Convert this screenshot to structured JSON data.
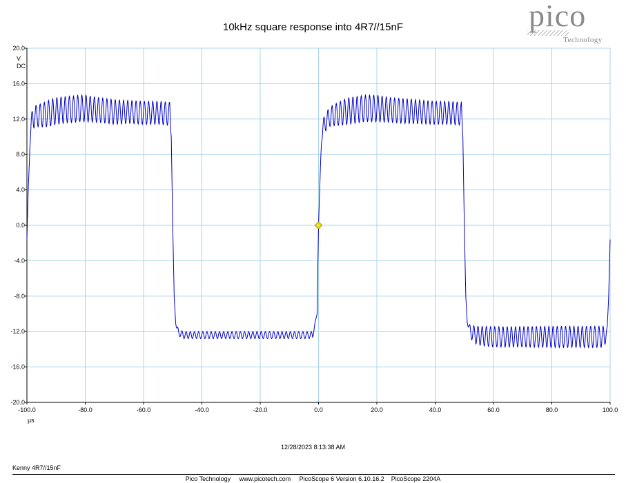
{
  "title": "10kHz square response into 4R7//15nF",
  "logo": {
    "word": "pico",
    "sub": "Technology"
  },
  "timestamp": "12/28/2023 8:13:38 AM",
  "note": "Kenny 4R7//15nF",
  "footer": "Pico Technology     www.picotech.com     PicoScope 6 Version 6.10.16.2    PicoScope 2204A",
  "colors": {
    "trace": "#0000cc",
    "grid": "#a8d4ea",
    "marker": "#f0e030",
    "marker_stroke": "#a09000"
  },
  "chart_data": {
    "type": "line",
    "title": "10kHz square response into 4R7//15nF",
    "xlabel": "µs",
    "ylabel_lines": [
      "V",
      "DC"
    ],
    "xlim": [
      -100,
      100
    ],
    "ylim": [
      -20,
      20
    ],
    "x_ticks": [
      -100,
      -80,
      -60,
      -40,
      -20,
      0,
      20,
      40,
      60,
      80,
      100
    ],
    "x_tick_labels": [
      "-100.0",
      "-80.0",
      "-60.0",
      "-40.0",
      "-20.0",
      "0.0",
      "20.0",
      "40.0",
      "60.0",
      "80.0",
      "100.0"
    ],
    "y_ticks": [
      20,
      16,
      12,
      8,
      4,
      0,
      -4,
      -8,
      -12,
      -16,
      -20
    ],
    "y_tick_labels": [
      "20.0",
      "16.0",
      "12.0",
      "8.0",
      "4.0",
      "0.0",
      "-4.0",
      "-8.0",
      "-12.0",
      "-16.0",
      "-20.0"
    ],
    "grid": true,
    "trigger_marker": {
      "x": 0,
      "y": 0
    },
    "series": [
      {
        "x": [
          -100,
          -99.5,
          -99,
          -98,
          -96,
          -94,
          -92,
          -90,
          -88,
          -86,
          -84,
          -82,
          -80,
          -75,
          -70,
          -65,
          -60,
          -55,
          -51,
          -50.5,
          -50,
          -49.5,
          -49,
          -48.5,
          -48,
          -47,
          -46,
          -44,
          -40,
          -30,
          -20,
          -10,
          -2,
          -0.5,
          0,
          0.5,
          1,
          2,
          4,
          6,
          8,
          10,
          12,
          14,
          16,
          20,
          25,
          30,
          35,
          40,
          45,
          49,
          49.5,
          50,
          50.5,
          51,
          52,
          54,
          56,
          60,
          70,
          80,
          90,
          98,
          99,
          99.5,
          100
        ],
        "y": [
          -2,
          4,
          10,
          12.2,
          12.4,
          12.5,
          12.7,
          12.9,
          13,
          13.1,
          13.1,
          13.2,
          13.2,
          13,
          12.8,
          12.8,
          12.7,
          12.7,
          12.6,
          10,
          0,
          -8,
          -11,
          -11.8,
          -12.1,
          -12.3,
          -12.4,
          -12.4,
          -12.4,
          -12.4,
          -12.4,
          -12.4,
          -12.4,
          -10,
          0,
          5,
          10,
          11.5,
          12.3,
          12.5,
          12.7,
          12.9,
          13,
          13.1,
          13.2,
          13.2,
          13,
          12.9,
          12.8,
          12.7,
          12.7,
          12.6,
          10,
          0,
          -8,
          -11,
          -12,
          -12.4,
          -12.5,
          -12.6,
          -12.6,
          -12.6,
          -12.6,
          -12.6,
          -12,
          -8,
          -1.6
        ],
        "ripple_pp": [
          1.5,
          1.5,
          2.5,
          2.5,
          2.5,
          2.8,
          3,
          3,
          3,
          3,
          3,
          3,
          3,
          2.8,
          2.8,
          2.6,
          2.6,
          2.6,
          2.6,
          0,
          0,
          0,
          0,
          0.8,
          0.8,
          0.8,
          0.8,
          0.8,
          0.8,
          0.8,
          0.8,
          0.8,
          0.8,
          0,
          0,
          0,
          1.5,
          2,
          2.2,
          2.5,
          2.8,
          3,
          3,
          3,
          3,
          3,
          2.8,
          2.8,
          2.7,
          2.6,
          2.6,
          2.6,
          0,
          0,
          0,
          0,
          1.5,
          2,
          2.2,
          2.3,
          2.3,
          2.4,
          2.4,
          2.4,
          1,
          0,
          0
        ]
      }
    ]
  }
}
